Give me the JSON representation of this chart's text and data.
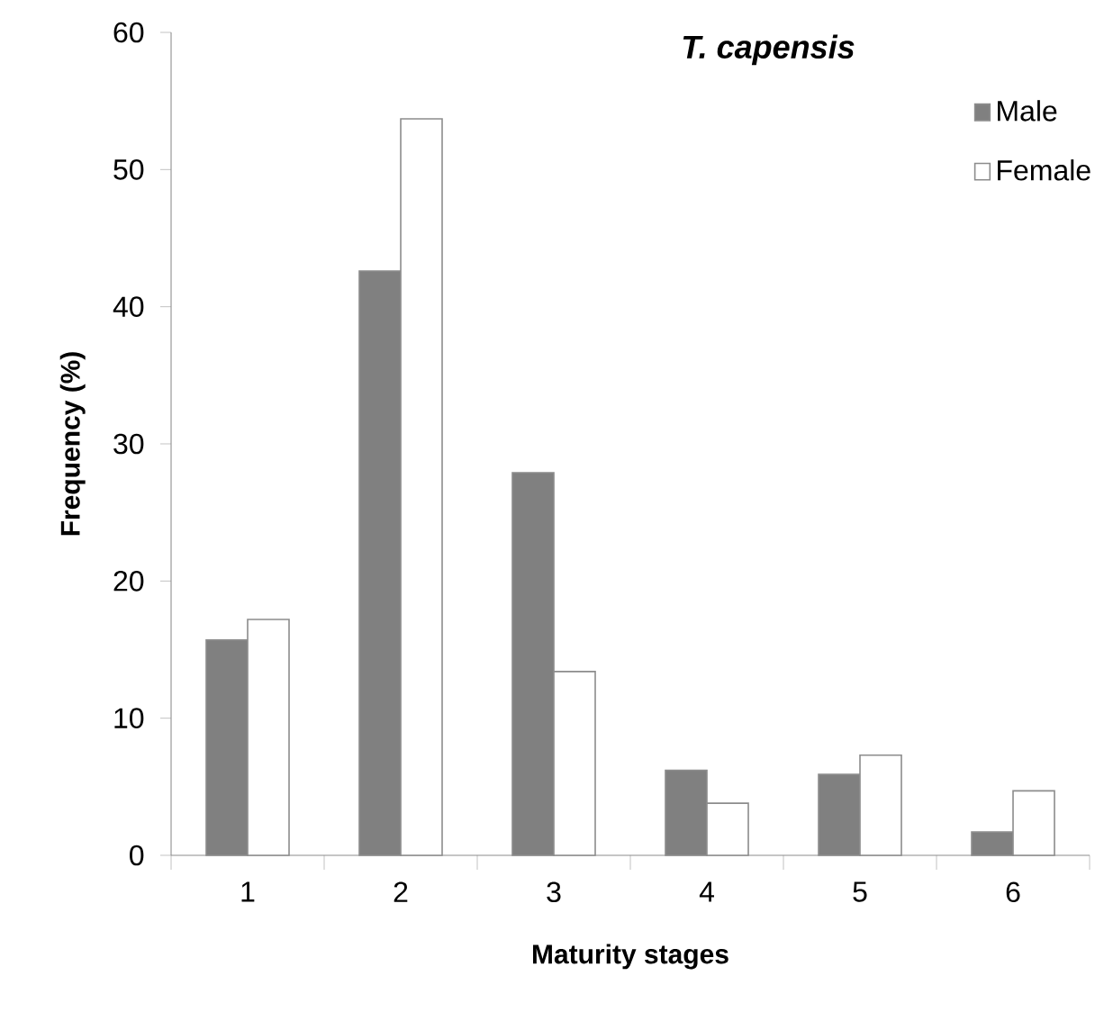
{
  "chart_data": {
    "type": "bar",
    "title": "T. capensis",
    "xlabel": "Maturity stages",
    "ylabel": "Frequency (%)",
    "categories": [
      "1",
      "2",
      "3",
      "4",
      "5",
      "6"
    ],
    "series": [
      {
        "name": "Male",
        "color": "#808080",
        "values": [
          15.7,
          42.6,
          27.9,
          6.2,
          5.9,
          1.7
        ]
      },
      {
        "name": "Female",
        "color": "#ffffff",
        "values": [
          17.2,
          53.7,
          13.4,
          3.8,
          7.3,
          4.7
        ]
      }
    ],
    "ylim": [
      0,
      60
    ],
    "yticks": [
      0,
      10,
      20,
      30,
      40,
      50,
      60
    ],
    "legend": "top right",
    "grid": false
  }
}
